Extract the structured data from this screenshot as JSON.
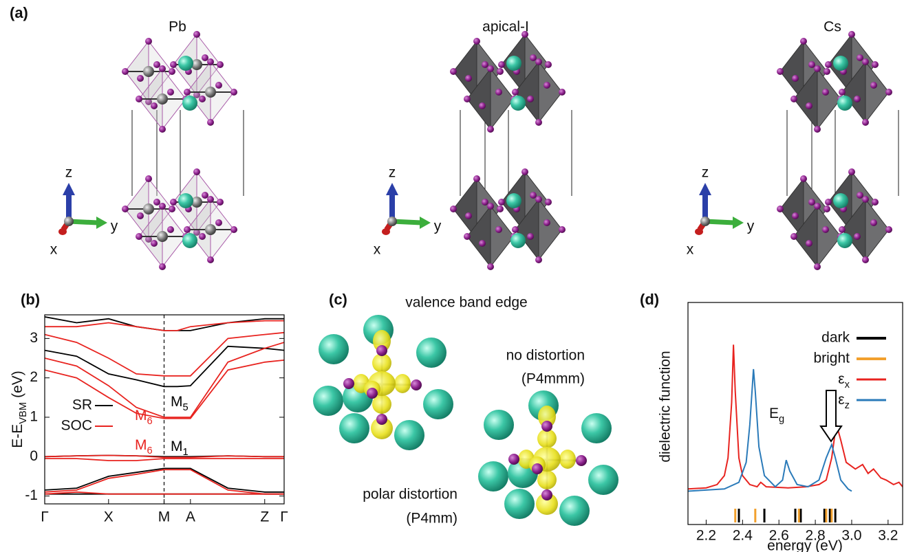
{
  "panel_labels": [
    "(a)",
    "(b)",
    "(c)",
    "(d)"
  ],
  "structures": [
    {
      "title": "Pb"
    },
    {
      "title": "apical-I"
    },
    {
      "title": "Cs"
    }
  ],
  "axes_triad": {
    "x": "x",
    "y": "y",
    "z": "z"
  },
  "panel_c": {
    "title": "valence band edge",
    "top_label": "no distortion",
    "top_group": "(P4mmm)",
    "bottom_label": "polar distortion",
    "bottom_group": "(P4mm)"
  },
  "chart_data": [
    {
      "type": "band_structure",
      "ylabel": {
        "text": "E-E",
        "sub": "VBM",
        "unit": "(eV)"
      },
      "xlim": [
        0,
        3.45
      ],
      "ylim": [
        -1.2,
        3.6
      ],
      "yticks": [
        -1,
        0,
        1,
        2,
        3
      ],
      "xticks": [
        {
          "value": 0,
          "label": "Γ"
        },
        {
          "value": 0.92,
          "label": "X"
        },
        {
          "value": 1.72,
          "label": "M"
        },
        {
          "value": 2.1,
          "label": "A"
        },
        {
          "value": 3.17,
          "label": "Z"
        },
        {
          "value": 3.45,
          "label": "Γ"
        }
      ],
      "x": [
        0,
        0.46,
        0.92,
        1.32,
        1.72,
        1.91,
        2.1,
        2.64,
        3.17,
        3.45
      ],
      "series": [
        {
          "name": "SR",
          "color": "#000000",
          "bands": [
            [
              2.7,
              2.55,
              2.1,
              1.95,
              1.78,
              1.78,
              1.8,
              2.8,
              2.75,
              2.7
            ],
            [
              3.55,
              3.4,
              3.5,
              3.3,
              3.2,
              3.2,
              3.2,
              3.4,
              3.5,
              3.5
            ],
            [
              0,
              0.02,
              0.03,
              0.02,
              0,
              0,
              0,
              0.02,
              0,
              0
            ],
            [
              -0.85,
              -0.8,
              -0.5,
              -0.4,
              -0.3,
              -0.3,
              -0.3,
              -0.8,
              -0.9,
              -0.9
            ],
            [
              -0.95,
              -0.95,
              -0.95,
              -0.95,
              -0.95,
              -0.95,
              -0.95,
              -0.95,
              -0.95,
              -0.95
            ]
          ]
        },
        {
          "name": "SOC",
          "color": "#e8231f",
          "bands": [
            [
              2.2,
              2.0,
              1.5,
              1.1,
              0.97,
              0.97,
              0.97,
              2.2,
              2.4,
              2.45
            ],
            [
              2.5,
              2.3,
              1.8,
              1.25,
              1.0,
              1.0,
              1.0,
              2.4,
              2.75,
              2.9
            ],
            [
              3.1,
              2.9,
              2.5,
              2.1,
              2.05,
              2.05,
              2.05,
              3.0,
              3.1,
              3.15
            ],
            [
              3.3,
              3.3,
              3.4,
              3.3,
              3.2,
              3.2,
              3.3,
              3.4,
              3.45,
              3.45
            ],
            [
              0,
              0.02,
              0.03,
              0.02,
              -0.02,
              -0.02,
              -0.02,
              0.02,
              0,
              0
            ],
            [
              -0.05,
              -0.05,
              -0.1,
              -0.1,
              -0.05,
              -0.05,
              -0.05,
              -0.05,
              -0.05,
              -0.05
            ],
            [
              -0.9,
              -0.85,
              -0.55,
              -0.45,
              -0.33,
              -0.33,
              -0.33,
              -0.85,
              -0.95,
              -0.95
            ],
            [
              -0.95,
              -0.9,
              -0.95,
              -0.95,
              -0.95,
              -0.95,
              -0.95,
              -0.95,
              -0.95,
              -0.95
            ]
          ]
        }
      ],
      "annotations": [
        {
          "text": "M",
          "sub": "5",
          "color": "#000000"
        },
        {
          "text": "M",
          "sub": "6",
          "color": "#e8231f"
        },
        {
          "text": "M",
          "sub": "6",
          "color": "#e8231f"
        },
        {
          "text": "M",
          "sub": "1",
          "color": "#000000"
        }
      ]
    },
    {
      "type": "line",
      "ylabel": "dielectric function",
      "xlabel": "energy (eV)",
      "xlim": [
        2.1,
        3.28
      ],
      "ylim": [
        0,
        1
      ],
      "xticks": [
        2.2,
        2.4,
        2.6,
        2.8,
        {
          "value": 3,
          "label": "3.0"
        },
        3.2
      ],
      "transitions": [
        {
          "name": "dark",
          "color": "#000000",
          "values": [
            2.38,
            2.52,
            2.69,
            2.72,
            2.85,
            2.88,
            2.91
          ]
        },
        {
          "name": "bright",
          "color": "#f2a02d",
          "values": [
            2.36,
            2.47,
            2.71,
            2.86,
            2.89
          ]
        }
      ],
      "series": [
        {
          "name": "ε",
          "sub": "x",
          "color": "#e8231f",
          "x": [
            2.1,
            2.2,
            2.26,
            2.3,
            2.32,
            2.34,
            2.35,
            2.36,
            2.38,
            2.4,
            2.44,
            2.48,
            2.5,
            2.53,
            2.65,
            2.75,
            2.82,
            2.86,
            2.89,
            2.91,
            2.92,
            2.94,
            2.97,
            3.02,
            3.06,
            3.09,
            3.12,
            3.16,
            3.19,
            3.23,
            3.26,
            3.28
          ],
          "values": [
            0.16,
            0.165,
            0.18,
            0.22,
            0.3,
            0.55,
            0.81,
            0.6,
            0.3,
            0.22,
            0.18,
            0.17,
            0.19,
            0.17,
            0.165,
            0.17,
            0.18,
            0.2,
            0.3,
            0.42,
            0.44,
            0.38,
            0.28,
            0.25,
            0.27,
            0.23,
            0.25,
            0.21,
            0.2,
            0.18,
            0.19,
            0.17
          ]
        },
        {
          "name": "ε",
          "sub": "z",
          "color": "#2a7ab9",
          "x": [
            2.1,
            2.3,
            2.38,
            2.42,
            2.44,
            2.46,
            2.47,
            2.49,
            2.52,
            2.58,
            2.62,
            2.64,
            2.66,
            2.7,
            2.76,
            2.82,
            2.86,
            2.89,
            2.91,
            2.94,
            2.98,
            3.0
          ],
          "values": [
            0.15,
            0.16,
            0.19,
            0.28,
            0.45,
            0.7,
            0.6,
            0.35,
            0.22,
            0.17,
            0.2,
            0.29,
            0.24,
            0.18,
            0.17,
            0.2,
            0.3,
            0.36,
            0.3,
            0.2,
            0.16,
            0.15
          ]
        }
      ],
      "annotations": [
        {
          "text": "E",
          "sub": "g"
        }
      ]
    }
  ]
}
